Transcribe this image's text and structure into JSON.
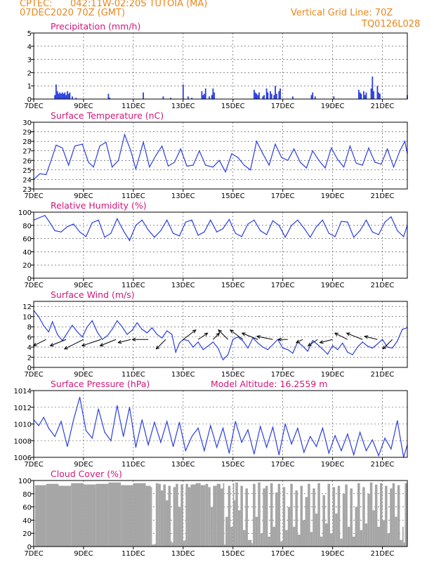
{
  "header": {
    "source": "CPTEC:",
    "location": "042:11W-02:20S   TUTOIA (MA)",
    "date": "07DEC2020 70Z (GMT)",
    "grid_note": "Vertical Grid Line: 70Z",
    "code": "TQ0126L028"
  },
  "colors": {
    "header": "#e8871e",
    "title": "#d1167a",
    "series": "#2b3fe0",
    "cloud": "#a6a6a6",
    "arrow": "#000000"
  },
  "x_tick_labels": [
    "7DEC",
    "9DEC",
    "11DEC",
    "13DEC",
    "15DEC",
    "17DEC",
    "19DEC",
    "21DEC"
  ],
  "x_tick_days": [
    7,
    9,
    11,
    13,
    15,
    17,
    19,
    21
  ],
  "x_range": [
    7,
    22.0
  ],
  "chart_data": [
    {
      "id": "precip",
      "type": "bar",
      "title": "Precipitation (mm/h)",
      "ylim": [
        0,
        5
      ],
      "yticks": [
        0,
        1,
        2,
        3,
        4,
        5
      ],
      "ytick_labels": [
        "0",
        "1",
        "2",
        "3",
        "4",
        "5"
      ],
      "x": [
        7.85,
        7.9,
        7.95,
        8.0,
        8.05,
        8.1,
        8.15,
        8.2,
        8.25,
        8.3,
        8.35,
        8.4,
        8.45,
        8.55,
        8.7,
        10.0,
        10.05,
        11.4,
        12.2,
        12.5,
        13.0,
        13.2,
        13.35,
        13.75,
        13.8,
        13.85,
        13.9,
        14.05,
        14.15,
        14.2,
        14.25,
        15.85,
        15.9,
        15.95,
        16.0,
        16.05,
        16.2,
        16.25,
        16.35,
        16.4,
        16.5,
        16.55,
        16.65,
        16.7,
        16.75,
        16.85,
        16.9,
        17.4,
        18.15,
        18.2,
        18.3,
        19.05,
        20.05,
        20.1,
        20.15,
        20.25,
        20.3,
        20.35,
        20.55,
        20.6,
        20.65,
        20.8,
        20.85,
        20.9,
        22.0
      ],
      "values": [
        0.3,
        1.1,
        0.6,
        0.4,
        0.5,
        0.4,
        0.5,
        0.4,
        0.5,
        0.3,
        0.6,
        0.4,
        0.5,
        0.2,
        0.1,
        0.4,
        0.1,
        0.5,
        0.2,
        0.1,
        1.1,
        0.2,
        0.1,
        0.6,
        0.3,
        0.4,
        0.8,
        0.2,
        0.3,
        0.8,
        0.5,
        0.7,
        0.5,
        0.4,
        0.3,
        0.5,
        0.2,
        0.3,
        0.8,
        0.5,
        0.6,
        0.4,
        0.3,
        1.0,
        0.4,
        0.6,
        0.8,
        0.2,
        0.3,
        0.5,
        0.2,
        0.2,
        0.7,
        0.5,
        0.4,
        0.6,
        0.3,
        0.5,
        0.8,
        1.7,
        0.6,
        1.0,
        0.5,
        0.4,
        0.3
      ]
    },
    {
      "id": "temp",
      "type": "line",
      "title": "Surface Temperature (nC)",
      "ylim": [
        23,
        30
      ],
      "yticks": [
        23,
        24,
        25,
        26,
        27,
        28,
        29,
        30
      ],
      "ytick_labels": [
        "23",
        "24",
        "25",
        "26",
        "27",
        "28",
        "29",
        "30"
      ],
      "x": [
        7.0,
        7.25,
        7.5,
        7.7,
        7.9,
        8.15,
        8.4,
        8.65,
        8.95,
        9.2,
        9.4,
        9.65,
        9.9,
        10.15,
        10.4,
        10.65,
        10.9,
        11.1,
        11.4,
        11.65,
        11.9,
        12.15,
        12.4,
        12.65,
        12.9,
        13.15,
        13.4,
        13.65,
        13.9,
        14.2,
        14.45,
        14.7,
        14.95,
        15.2,
        15.45,
        15.7,
        15.95,
        16.2,
        16.45,
        16.7,
        16.95,
        17.2,
        17.45,
        17.7,
        17.95,
        18.2,
        18.45,
        18.7,
        18.95,
        19.2,
        19.45,
        19.7,
        19.95,
        20.2,
        20.45,
        20.7,
        20.95,
        21.2,
        21.45,
        21.7,
        21.9,
        22.0
      ],
      "values": [
        24.0,
        24.6,
        24.5,
        26.0,
        27.6,
        27.3,
        25.5,
        27.5,
        27.7,
        25.8,
        25.3,
        27.5,
        27.9,
        25.3,
        26.0,
        28.7,
        27.0,
        25.1,
        27.9,
        25.3,
        26.5,
        27.5,
        25.4,
        25.8,
        27.2,
        25.4,
        25.5,
        27.0,
        25.5,
        25.3,
        26.0,
        24.8,
        26.7,
        26.3,
        25.5,
        25.0,
        28.0,
        26.7,
        25.5,
        27.7,
        26.3,
        26.0,
        27.2,
        25.8,
        25.2,
        27.0,
        26.0,
        25.2,
        27.3,
        26.1,
        25.3,
        27.5,
        25.7,
        25.5,
        27.3,
        25.8,
        25.6,
        27.2,
        25.3,
        27.0,
        28.0,
        26.7
      ]
    },
    {
      "id": "rh",
      "type": "line",
      "title": "Relative Humidity (%)",
      "ylim": [
        0,
        100
      ],
      "yticks": [
        0,
        20,
        40,
        60,
        80,
        100
      ],
      "ytick_labels": [
        "0",
        "20",
        "40",
        "60",
        "80",
        "100"
      ],
      "x": [
        7.0,
        7.25,
        7.45,
        7.65,
        7.85,
        8.1,
        8.35,
        8.6,
        8.85,
        9.1,
        9.35,
        9.6,
        9.85,
        10.1,
        10.35,
        10.6,
        10.85,
        11.1,
        11.35,
        11.6,
        11.85,
        12.1,
        12.35,
        12.6,
        12.85,
        13.1,
        13.35,
        13.6,
        13.85,
        14.1,
        14.35,
        14.6,
        14.85,
        15.1,
        15.35,
        15.6,
        15.85,
        16.1,
        16.35,
        16.6,
        16.85,
        17.1,
        17.35,
        17.6,
        17.85,
        18.1,
        18.35,
        18.6,
        18.85,
        19.1,
        19.35,
        19.6,
        19.85,
        20.1,
        20.35,
        20.6,
        20.85,
        21.1,
        21.35,
        21.6,
        21.85,
        22.0
      ],
      "values": [
        88,
        92,
        95,
        84,
        72,
        70,
        78,
        82,
        70,
        63,
        84,
        88,
        62,
        68,
        90,
        72,
        57,
        80,
        88,
        73,
        62,
        72,
        88,
        68,
        64,
        85,
        88,
        65,
        70,
        88,
        70,
        75,
        89,
        68,
        63,
        82,
        88,
        72,
        66,
        87,
        80,
        62,
        80,
        88,
        76,
        62,
        78,
        88,
        68,
        63,
        86,
        85,
        62,
        72,
        88,
        70,
        66,
        85,
        93,
        72,
        63,
        80
      ]
    },
    {
      "id": "wind",
      "type": "line",
      "title": "Surface Wind (m/s)",
      "ylim": [
        0,
        13
      ],
      "yticks": [
        0,
        2,
        4,
        6,
        8,
        10,
        12
      ],
      "ytick_labels": [
        "0",
        "2",
        "4",
        "6",
        "8",
        "10",
        "12"
      ],
      "x": [
        7.0,
        7.2,
        7.4,
        7.6,
        7.75,
        7.95,
        8.15,
        8.35,
        8.55,
        8.75,
        8.95,
        9.15,
        9.35,
        9.55,
        9.75,
        9.95,
        10.15,
        10.35,
        10.55,
        10.75,
        10.95,
        11.15,
        11.35,
        11.55,
        11.75,
        11.95,
        12.15,
        12.35,
        12.55,
        12.7,
        12.85,
        13.0,
        13.2,
        13.4,
        13.6,
        13.8,
        14.0,
        14.2,
        14.4,
        14.6,
        14.8,
        15.0,
        15.2,
        15.4,
        15.6,
        15.8,
        16.0,
        16.2,
        16.4,
        16.6,
        16.8,
        17.0,
        17.2,
        17.4,
        17.6,
        17.8,
        18.0,
        18.2,
        18.4,
        18.6,
        18.8,
        19.0,
        19.2,
        19.4,
        19.6,
        19.8,
        20.0,
        20.2,
        20.4,
        20.6,
        20.8,
        21.0,
        21.2,
        21.4,
        21.6,
        21.8,
        22.0
      ],
      "values": [
        11.2,
        10.0,
        8.2,
        7.0,
        9.0,
        6.5,
        5.3,
        6.8,
        8.3,
        7.0,
        6.0,
        8.0,
        9.2,
        7.0,
        5.5,
        6.2,
        7.5,
        9.2,
        8.0,
        6.5,
        7.3,
        8.8,
        7.5,
        6.8,
        7.8,
        6.5,
        5.8,
        7.2,
        6.5,
        3.0,
        4.8,
        5.5,
        5.3,
        4.0,
        5.0,
        3.5,
        4.2,
        5.0,
        3.8,
        1.5,
        2.5,
        5.5,
        6.0,
        5.2,
        3.8,
        5.8,
        4.8,
        4.0,
        3.5,
        4.5,
        5.5,
        3.8,
        3.5,
        2.8,
        5.0,
        4.2,
        3.2,
        5.3,
        4.5,
        3.6,
        2.6,
        4.3,
        3.5,
        4.8,
        3.0,
        2.5,
        4.0,
        5.0,
        4.2,
        3.8,
        4.6,
        5.5,
        4.0,
        3.8,
        5.2,
        7.5,
        7.8
      ]
    },
    {
      "id": "pres",
      "type": "line",
      "title": "Surface Pressure (hPa)",
      "annotation": "Model Altitude: 16.2559 m",
      "ylim": [
        1006,
        1014
      ],
      "yticks": [
        1006,
        1008,
        1010,
        1012,
        1014
      ],
      "ytick_labels": [
        "1006",
        "1008",
        "1010",
        "1012",
        "1014"
      ],
      "x": [
        7.0,
        7.2,
        7.4,
        7.6,
        7.85,
        8.1,
        8.35,
        8.6,
        8.85,
        9.1,
        9.35,
        9.6,
        9.85,
        10.1,
        10.35,
        10.6,
        10.85,
        11.1,
        11.35,
        11.6,
        11.85,
        12.1,
        12.35,
        12.6,
        12.85,
        13.1,
        13.35,
        13.6,
        13.85,
        14.1,
        14.35,
        14.6,
        14.85,
        15.1,
        15.35,
        15.6,
        15.85,
        16.1,
        16.35,
        16.6,
        16.85,
        17.1,
        17.35,
        17.6,
        17.85,
        18.1,
        18.35,
        18.6,
        18.85,
        19.1,
        19.35,
        19.6,
        19.85,
        20.1,
        20.35,
        20.6,
        20.85,
        21.1,
        21.35,
        21.6,
        21.85,
        22.0
      ],
      "values": [
        1010.5,
        1009.8,
        1010.8,
        1009.5,
        1008.5,
        1010.3,
        1007.3,
        1010.5,
        1013.2,
        1009.2,
        1008.3,
        1011.8,
        1009.0,
        1008.0,
        1012.2,
        1008.5,
        1012.0,
        1007.2,
        1010.5,
        1007.5,
        1010.2,
        1007.8,
        1010.3,
        1007.3,
        1010.2,
        1006.8,
        1008.5,
        1009.5,
        1006.8,
        1009.8,
        1007.2,
        1009.5,
        1006.5,
        1010.3,
        1007.8,
        1009.3,
        1006.4,
        1009.7,
        1007.2,
        1009.6,
        1006.3,
        1010.0,
        1007.6,
        1009.5,
        1006.6,
        1008.5,
        1007.3,
        1009.5,
        1006.5,
        1008.6,
        1006.8,
        1008.8,
        1006.3,
        1009.0,
        1006.8,
        1008.1,
        1006.2,
        1008.3,
        1007.0,
        1010.4,
        1006.0,
        1007.5
      ]
    },
    {
      "id": "cloud",
      "type": "area",
      "title": "Cloud Cover (%)",
      "ylim": [
        0,
        100
      ],
      "yticks": [
        0,
        20,
        40,
        60,
        80,
        100
      ],
      "ytick_labels": [
        "0",
        "20",
        "40",
        "60",
        "80",
        "100"
      ],
      "x": [
        7.0,
        7.05,
        7.5,
        8.0,
        8.5,
        9.0,
        9.5,
        10.0,
        10.5,
        11.0,
        11.5,
        11.7,
        11.75,
        11.85,
        11.9,
        12.0,
        12.1,
        12.2,
        12.3,
        12.4,
        12.5,
        12.55,
        12.6,
        12.7,
        12.8,
        12.9,
        13.0,
        13.05,
        13.1,
        13.2,
        13.3,
        13.5,
        13.7,
        13.9,
        14.0,
        14.1,
        14.2,
        14.35,
        14.5,
        14.6,
        14.65,
        14.7,
        14.8,
        14.9,
        15.0,
        15.05,
        15.1,
        15.2,
        15.3,
        15.4,
        15.5,
        15.6,
        15.75,
        15.8,
        15.9,
        16.0,
        16.1,
        16.2,
        16.3,
        16.4,
        16.5,
        16.6,
        16.7,
        16.8,
        16.9,
        17.0,
        17.1,
        17.2,
        17.3,
        17.4,
        17.5,
        17.6,
        17.7,
        17.8,
        17.9,
        18.0,
        18.1,
        18.2,
        18.3,
        18.4,
        18.5,
        18.6,
        18.7,
        18.8,
        18.9,
        19.0,
        19.1,
        19.2,
        19.3,
        19.4,
        19.5,
        19.6,
        19.7,
        19.8,
        19.9,
        20.0,
        20.1,
        20.2,
        20.3,
        20.4,
        20.5,
        20.6,
        20.7,
        20.8,
        20.9,
        21.0,
        21.1,
        21.2,
        21.3,
        21.4,
        21.5,
        21.6,
        21.7,
        21.8,
        21.85,
        21.9,
        22.0
      ],
      "values": [
        0,
        93,
        95,
        92,
        96,
        94,
        95,
        97,
        93,
        96,
        92,
        90,
        3,
        4,
        96,
        95,
        85,
        94,
        70,
        92,
        8,
        6,
        90,
        95,
        60,
        94,
        8,
        10,
        95,
        90,
        94,
        96,
        93,
        95,
        90,
        60,
        92,
        95,
        88,
        96,
        3,
        45,
        92,
        30,
        96,
        70,
        97,
        55,
        92,
        25,
        88,
        10,
        5,
        95,
        45,
        97,
        20,
        88,
        92,
        15,
        96,
        30,
        82,
        95,
        8,
        90,
        25,
        60,
        95,
        30,
        85,
        18,
        92,
        40,
        75,
        95,
        22,
        88,
        50,
        96,
        15,
        78,
        35,
        95,
        20,
        90,
        50,
        92,
        12,
        80,
        94,
        30,
        88,
        15,
        60,
        96,
        25,
        90,
        35,
        80,
        97,
        55,
        94,
        30,
        96,
        40,
        92,
        20,
        88,
        96,
        45,
        93,
        10,
        30,
        6,
        96,
        97
      ]
    }
  ],
  "wind_vectors": {
    "x": [
      7.5,
      8.3,
      9.0,
      9.7,
      10.3,
      10.9,
      11.6,
      12.3,
      13.0,
      13.6,
      14.2,
      14.8,
      15.4,
      16.0,
      16.6,
      17.2,
      17.8,
      18.4,
      19.0,
      19.6,
      20.2,
      20.8,
      21.4
    ],
    "u": [
      -4,
      -5,
      -6,
      -6,
      -5,
      -4,
      -5,
      -3,
      4,
      3,
      2,
      -3,
      -4,
      -5,
      -5,
      -3,
      -2,
      -3,
      -4,
      -4,
      -5,
      -4,
      -3
    ],
    "v": [
      -2,
      -2,
      -3,
      -2,
      -2,
      -1,
      0,
      -3,
      3,
      2,
      2,
      3,
      3,
      2,
      1,
      0,
      -1,
      -2,
      -1,
      2,
      2,
      1,
      -3
    ]
  }
}
